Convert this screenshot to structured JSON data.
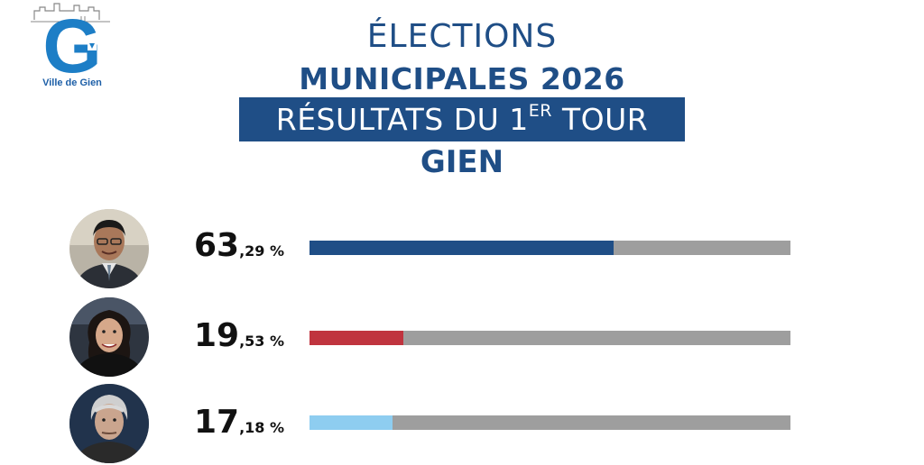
{
  "logo": {
    "letter": "G",
    "text": "Ville de Gien"
  },
  "header": {
    "line1": "ÉLECTIONS",
    "line2": "MUNICIPALES 2026",
    "banner_main": "RÉSULTATS DU 1",
    "banner_sup": "ER",
    "banner_end": " TOUR",
    "city": "GIEN"
  },
  "colors": {
    "primary": "#1f4e86",
    "track": "#9e9e9e"
  },
  "chart_data": {
    "type": "bar",
    "orientation": "horizontal",
    "values": [
      63.29,
      19.53,
      17.18
    ],
    "value_labels": [
      {
        "int": "63",
        "dec": ",29 %"
      },
      {
        "int": "19",
        "dec": ",53 %"
      },
      {
        "int": "17",
        "dec": ",18 %"
      }
    ],
    "colors": [
      "#1f4e86",
      "#c0343f",
      "#8ecdf0"
    ],
    "xlim": [
      0,
      100
    ]
  },
  "candidates": [
    {
      "avatar_icon": "candidate-photo-icon"
    },
    {
      "avatar_icon": "candidate-photo-icon"
    },
    {
      "avatar_icon": "candidate-photo-icon"
    }
  ]
}
